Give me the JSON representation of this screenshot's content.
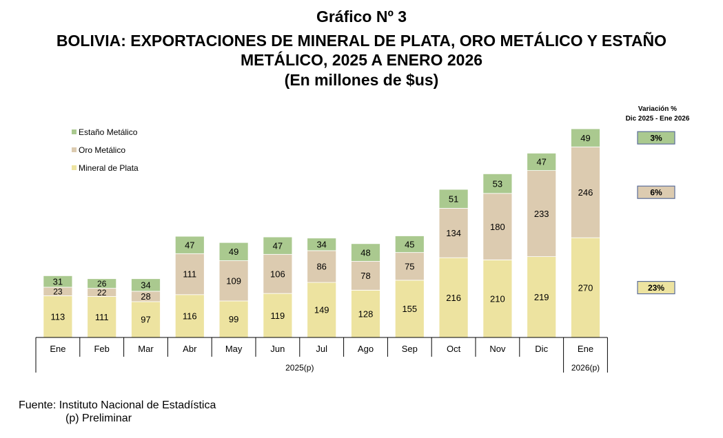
{
  "chart_data": {
    "type": "stacked-bar",
    "title": "Gráfico Nº 3",
    "subtitle": "BOLIVIA: EXPORTACIONES DE MINERAL DE PLATA, ORO METÁLICO Y ESTAÑO METÁLICO, 2025 A ENERO 2026",
    "units": "(En millones de $us)",
    "categories": [
      "Ene",
      "Feb",
      "Mar",
      "Abr",
      "May",
      "Jun",
      "Jul",
      "Ago",
      "Sep",
      "Oct",
      "Nov",
      "Dic",
      "Ene"
    ],
    "year_groups": [
      {
        "label": "2025(p)",
        "start": 0,
        "end": 11
      },
      {
        "label": "2026(p)",
        "start": 12,
        "end": 12
      }
    ],
    "series": [
      {
        "name": "Mineral de Plata",
        "color": "#ede3a0",
        "values": [
          113,
          111,
          97,
          116,
          99,
          119,
          149,
          128,
          155,
          216,
          210,
          219,
          270
        ]
      },
      {
        "name": "Oro Metálico",
        "color": "#dccbb0",
        "values": [
          23,
          22,
          28,
          111,
          109,
          106,
          86,
          78,
          75,
          134,
          180,
          233,
          246
        ]
      },
      {
        "name": "Estaño Metálico",
        "color": "#aac98f",
        "values": [
          31,
          26,
          34,
          47,
          49,
          47,
          34,
          48,
          45,
          51,
          53,
          47,
          49
        ]
      }
    ],
    "legend": [
      "Estaño Metálico",
      "Oro Metálico",
      "Mineral de Plata"
    ],
    "ylim": [
      0,
      565
    ],
    "variation": {
      "title_line1": "Variación %",
      "title_line2": "Dic 2025 - Ene 2026",
      "items": [
        {
          "series": "Estaño Metálico",
          "value": "3%"
        },
        {
          "series": "Oro Metálico",
          "value": "6%"
        },
        {
          "series": "Mineral de Plata",
          "value": "23%"
        }
      ]
    }
  },
  "footer": {
    "source": "Fuente: Instituto Nacional de Estadística",
    "note": "(p) Preliminar"
  }
}
